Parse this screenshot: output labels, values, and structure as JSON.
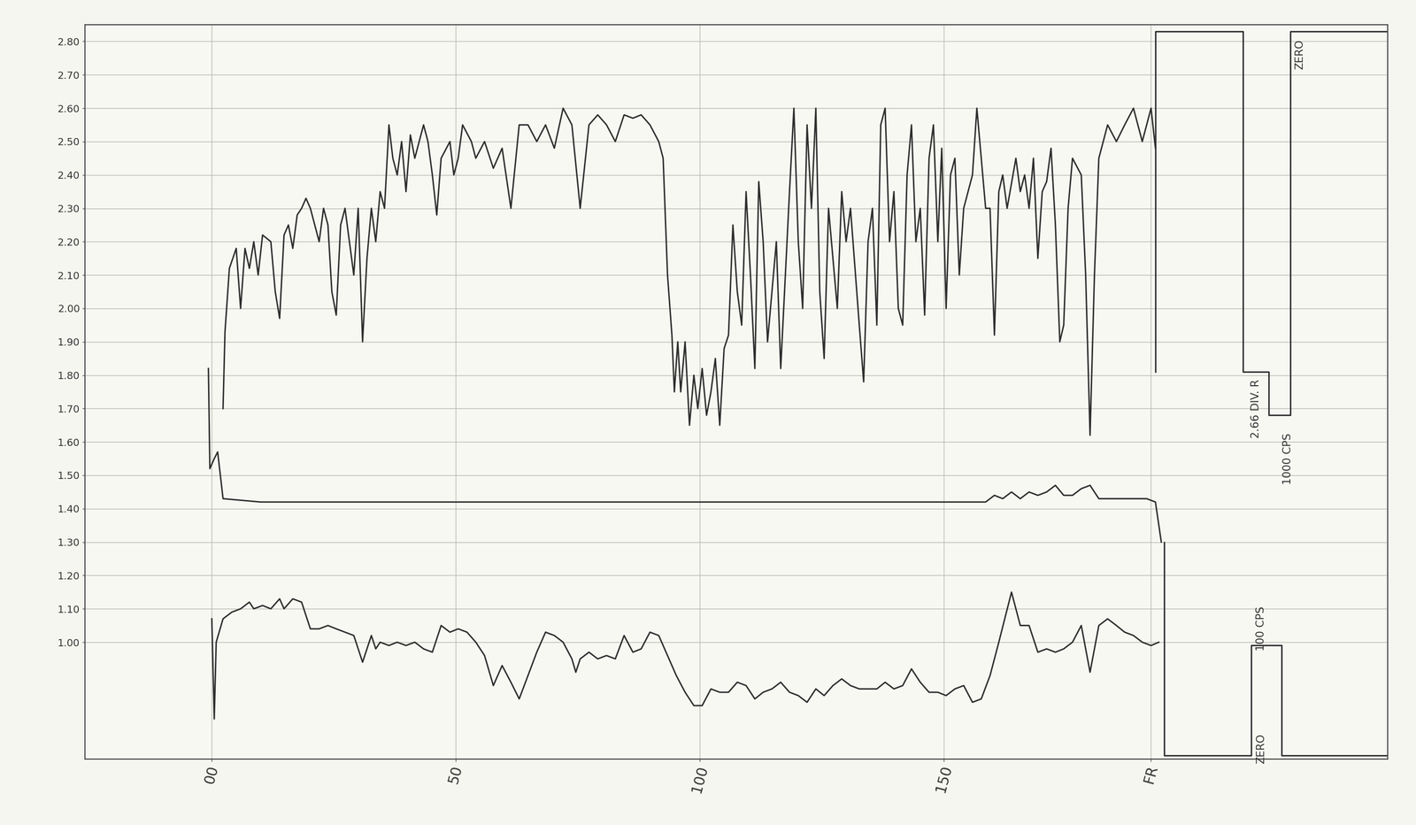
{
  "chart_data": {
    "type": "line",
    "xlim": [
      -26,
      241
    ],
    "ylim": [
      0.65,
      2.85
    ],
    "xticks": [
      {
        "value": 0,
        "label": "00"
      },
      50,
      100,
      150,
      {
        "value": 192.5,
        "label": "FR"
      }
    ],
    "yticks": [
      {
        "value": 1.0,
        "label": "1.00"
      },
      {
        "value": 1.1,
        "label": "1.10"
      },
      {
        "value": 1.2,
        "label": "1.20"
      },
      {
        "value": 1.3,
        "label": "1.30"
      },
      {
        "value": 1.4,
        "label": "1.40"
      },
      {
        "value": 1.5,
        "label": "1.50"
      },
      {
        "value": 1.6,
        "label": "1.60"
      },
      {
        "value": 1.7,
        "label": "1.70"
      },
      {
        "value": 1.8,
        "label": "1.80"
      },
      {
        "value": 1.9,
        "label": "1.90"
      },
      {
        "value": 2.0,
        "label": "2.00"
      },
      {
        "value": 2.1,
        "label": "2.10"
      },
      {
        "value": 2.2,
        "label": "2.20"
      },
      {
        "value": 2.3,
        "label": "2.30"
      },
      {
        "value": 2.4,
        "label": "2.40"
      },
      {
        "value": 2.5,
        "label": "2.50"
      },
      {
        "value": 2.6,
        "label": "2.60"
      },
      {
        "value": 2.7,
        "label": "2.70"
      },
      {
        "value": 2.8,
        "label": "2.80"
      }
    ],
    "grid": true,
    "series": [
      {
        "color": "#2e2e2e",
        "line_style": "solid",
        "x": [
          2.3,
          2.7,
          3.6,
          5.0,
          5.9,
          6.8,
          7.7,
          8.6,
          9.5,
          10.4,
          12.1,
          13.0,
          13.9,
          14.8,
          15.7,
          16.6,
          17.5,
          18.4,
          19.3,
          20.2,
          22.0,
          22.9,
          23.8,
          24.6,
          25.5,
          26.4,
          27.3,
          28.2,
          29.1,
          30.0,
          30.9,
          31.8,
          32.7,
          33.6,
          34.5,
          35.4,
          36.3,
          37.1,
          38.0,
          38.9,
          39.8,
          40.7,
          41.6,
          43.4,
          44.3,
          45.2,
          46.1,
          47.0,
          48.8,
          49.6,
          50.5,
          51.4,
          53.2,
          54.1,
          55.9,
          57.7,
          59.5,
          61.3,
          63.0,
          64.8,
          66.6,
          68.4,
          70.2,
          72.0,
          73.8,
          75.5,
          77.3,
          79.1,
          80.9,
          82.7,
          84.5,
          86.3,
          88.0,
          89.8,
          91.6,
          92.5,
          93.4,
          94.3,
          94.8,
          95.5,
          96.1,
          97.0,
          97.9,
          98.8,
          99.6,
          100.5,
          101.4,
          102.3,
          103.2,
          104.1,
          105.0,
          105.9,
          106.8,
          107.7,
          108.6,
          109.5,
          110.4,
          111.3,
          112.1,
          113.0,
          113.9,
          114.8,
          115.7,
          116.6,
          118.4,
          119.3,
          120.2,
          121.1,
          122.0,
          122.9,
          123.8,
          124.6,
          125.5,
          126.4,
          128.2,
          129.1,
          130.0,
          130.9,
          132.7,
          133.6,
          134.5,
          135.4,
          136.3,
          137.1,
          138.0,
          138.9,
          139.8,
          140.7,
          141.6,
          142.5,
          143.4,
          144.3,
          145.2,
          146.1,
          147.0,
          147.9,
          148.8,
          149.6,
          150.5,
          151.4,
          152.3,
          153.2,
          154.1,
          155.9,
          156.8,
          157.7,
          158.6,
          159.5,
          160.4,
          161.3,
          162.1,
          163.0,
          164.8,
          165.7,
          166.6,
          167.5,
          168.4,
          169.3,
          170.2,
          171.1,
          172.0,
          172.9,
          173.8,
          174.6,
          175.5,
          176.4,
          178.2,
          179.1,
          180.0,
          180.9,
          181.8,
          183.6,
          185.4,
          187.1,
          188.9,
          190.7,
          191.6,
          192.5,
          193.4
        ],
        "values": [
          1.7,
          1.93,
          2.12,
          2.18,
          2.0,
          2.18,
          2.12,
          2.2,
          2.1,
          2.22,
          2.2,
          2.05,
          1.97,
          2.22,
          2.25,
          2.18,
          2.28,
          2.3,
          2.33,
          2.3,
          2.2,
          2.3,
          2.25,
          2.05,
          1.98,
          2.25,
          2.3,
          2.2,
          2.1,
          2.3,
          1.9,
          2.15,
          2.3,
          2.2,
          2.35,
          2.3,
          2.55,
          2.45,
          2.4,
          2.5,
          2.35,
          2.52,
          2.45,
          2.55,
          2.5,
          2.4,
          2.28,
          2.45,
          2.5,
          2.4,
          2.45,
          2.55,
          2.5,
          2.45,
          2.5,
          2.42,
          2.48,
          2.3,
          2.55,
          2.55,
          2.5,
          2.55,
          2.48,
          2.6,
          2.55,
          2.3,
          2.55,
          2.58,
          2.55,
          2.5,
          2.58,
          2.57,
          2.58,
          2.55,
          2.5,
          2.45,
          2.1,
          1.92,
          1.75,
          1.9,
          1.75,
          1.9,
          1.65,
          1.8,
          1.7,
          1.82,
          1.68,
          1.75,
          1.85,
          1.65,
          1.88,
          1.92,
          2.25,
          2.05,
          1.95,
          2.35,
          2.1,
          1.82,
          2.38,
          2.2,
          1.9,
          2.05,
          2.2,
          1.82,
          2.35,
          2.6,
          2.2,
          2.0,
          2.55,
          2.3,
          2.6,
          2.05,
          1.85,
          2.3,
          2.0,
          2.35,
          2.2,
          2.3,
          1.95,
          1.78,
          2.2,
          2.3,
          1.95,
          2.55,
          2.6,
          2.2,
          2.35,
          2.0,
          1.95,
          2.4,
          2.55,
          2.2,
          2.3,
          1.98,
          2.45,
          2.55,
          2.2,
          2.48,
          2.0,
          2.4,
          2.45,
          2.1,
          2.3,
          2.4,
          2.6,
          2.45,
          2.3,
          2.3,
          1.92,
          2.35,
          2.4,
          2.3,
          2.45,
          2.35,
          2.4,
          2.3,
          2.45,
          2.15,
          2.35,
          2.38,
          2.48,
          2.25,
          1.9,
          1.95,
          2.3,
          2.45,
          2.4,
          2.1,
          1.62,
          2.1,
          2.45,
          2.55,
          2.5,
          2.55,
          2.6,
          2.5,
          2.55,
          2.6,
          2.48
        ]
      },
      {
        "color": "#2e2e2e",
        "line_style": "solid",
        "x": [
          -0.7,
          -0.4,
          0.5,
          1.2,
          2.3,
          10,
          50,
          100,
          150,
          158.6,
          160.4,
          162.1,
          163.9,
          165.7,
          167.5,
          169.3,
          171.1,
          172.9,
          174.6,
          176.4,
          178.2,
          180.0,
          181.8,
          186,
          191.6,
          193.4,
          194.1,
          194.6
        ],
        "values": [
          1.82,
          1.52,
          1.55,
          1.57,
          1.43,
          1.42,
          1.42,
          1.42,
          1.42,
          1.42,
          1.44,
          1.43,
          1.45,
          1.43,
          1.45,
          1.44,
          1.45,
          1.47,
          1.44,
          1.44,
          1.46,
          1.47,
          1.43,
          1.43,
          1.43,
          1.42,
          1.35,
          1.3
        ]
      },
      {
        "color": "#2e2e2e",
        "line_style": "solid",
        "x": [
          0.0,
          0.2,
          0.5,
          0.9,
          2.3,
          4.1,
          5.9,
          7.7,
          8.6,
          10.4,
          12.1,
          13.9,
          14.8,
          16.6,
          18.4,
          20.2,
          22.0,
          23.8,
          25.5,
          27.3,
          29.1,
          30.9,
          32.7,
          33.6,
          34.5,
          36.3,
          38.0,
          39.8,
          41.6,
          43.4,
          45.2,
          47.0,
          48.8,
          50.5,
          52.3,
          54.1,
          55.9,
          57.7,
          59.5,
          61.3,
          63.0,
          64.8,
          66.6,
          68.4,
          70.2,
          72.0,
          73.8,
          74.6,
          75.5,
          77.3,
          79.1,
          80.9,
          82.7,
          84.5,
          86.3,
          88.0,
          89.8,
          91.6,
          93.4,
          95.2,
          97.0,
          98.8,
          100.5,
          102.3,
          104.1,
          105.9,
          107.7,
          109.5,
          111.3,
          113.0,
          114.8,
          116.6,
          118.4,
          120.2,
          122.0,
          123.8,
          125.5,
          127.3,
          129.1,
          130.9,
          132.7,
          134.5,
          136.3,
          138.0,
          139.8,
          141.6,
          143.4,
          145.2,
          147.0,
          148.8,
          150.5,
          152.3,
          154.1,
          155.9,
          157.7,
          159.5,
          161.3,
          163.9,
          165.7,
          167.5,
          169.3,
          171.1,
          172.9,
          174.6,
          176.4,
          178.2,
          180.0,
          181.8,
          183.6,
          185.4,
          187.1,
          188.9,
          190.7,
          192.5,
          194.1
        ],
        "values": [
          1.07,
          0.95,
          0.77,
          1.0,
          1.07,
          1.09,
          1.1,
          1.12,
          1.1,
          1.11,
          1.1,
          1.13,
          1.1,
          1.13,
          1.12,
          1.04,
          1.04,
          1.05,
          1.04,
          1.03,
          1.02,
          0.94,
          1.02,
          0.98,
          1.0,
          0.99,
          1.0,
          0.99,
          1.0,
          0.98,
          0.97,
          1.05,
          1.03,
          1.04,
          1.03,
          1.0,
          0.96,
          0.87,
          0.93,
          0.88,
          0.83,
          0.9,
          0.97,
          1.03,
          1.02,
          1.0,
          0.95,
          0.91,
          0.95,
          0.97,
          0.95,
          0.96,
          0.95,
          1.02,
          0.97,
          0.98,
          1.03,
          1.02,
          0.96,
          0.9,
          0.85,
          0.81,
          0.81,
          0.86,
          0.85,
          0.85,
          0.88,
          0.87,
          0.83,
          0.85,
          0.86,
          0.88,
          0.85,
          0.84,
          0.82,
          0.86,
          0.84,
          0.87,
          0.89,
          0.87,
          0.86,
          0.86,
          0.86,
          0.88,
          0.86,
          0.87,
          0.92,
          0.88,
          0.85,
          0.85,
          0.84,
          0.86,
          0.87,
          0.82,
          0.83,
          0.9,
          1.0,
          1.15,
          1.05,
          1.05,
          0.97,
          0.98,
          0.97,
          0.98,
          1.0,
          1.05,
          0.91,
          1.05,
          1.07,
          1.05,
          1.03,
          1.02,
          1.0,
          0.99,
          1.0
        ]
      },
      {
        "color": "#2e2e2e",
        "line_style": "solid",
        "x": [
          193.4,
          193.4,
          211.3,
          211.3,
          216.6,
          216.6,
          221.1,
          221.1,
          240.7
        ],
        "values": [
          1.81,
          2.83,
          2.83,
          1.81,
          1.81,
          1.68,
          1.68,
          2.83,
          2.83
        ]
      },
      {
        "color": "#2e2e2e",
        "line_style": "solid",
        "x": [
          195.2,
          195.2,
          213.0,
          213.0,
          219.3,
          219.3,
          240.7
        ],
        "values": [
          1.3,
          0.66,
          0.66,
          0.99,
          0.99,
          0.66,
          0.66
        ]
      }
    ],
    "annotations": [
      {
        "text": "ZERO",
        "x": 223.0,
        "y": 2.76
      },
      {
        "text": "2.66 DIV. R",
        "x": 214.0,
        "y": 1.7
      },
      {
        "text": "1000 CPS",
        "x": 220.5,
        "y": 1.55
      },
      {
        "text": "100 CPS",
        "x": 215.0,
        "y": 1.04
      },
      {
        "text": "ZERO",
        "x": 215.0,
        "y": 0.68
      }
    ]
  }
}
